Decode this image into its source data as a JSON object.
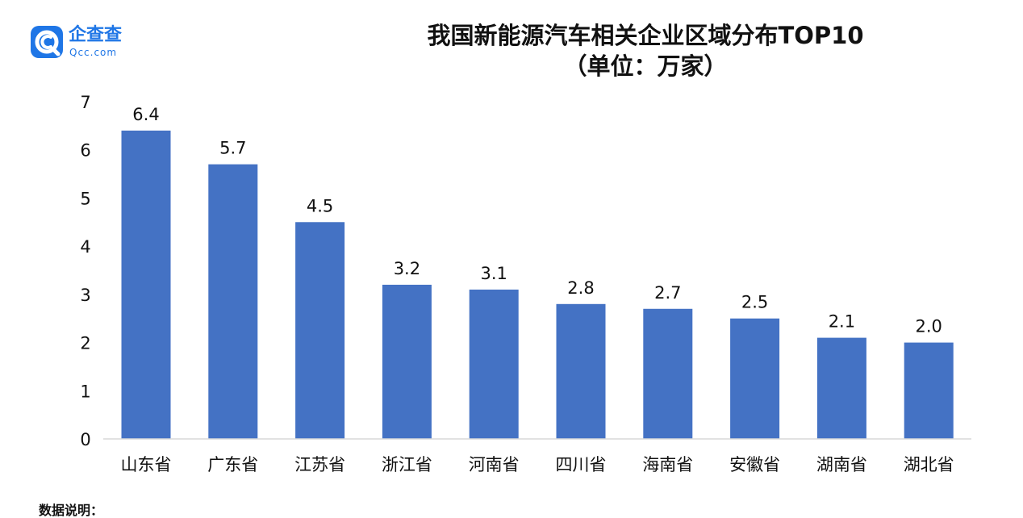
{
  "logo": {
    "name_cn": "企查查",
    "name_en": "Qcc.com",
    "icon": "qcc-logo-icon",
    "color": "#1f76e6"
  },
  "chart_data": {
    "type": "bar",
    "title": "我国新能源汽车相关企业区域分布TOP10",
    "subtitle": "（单位：万家）",
    "categories": [
      "山东省",
      "广东省",
      "江苏省",
      "浙江省",
      "河南省",
      "四川省",
      "海南省",
      "安徽省",
      "湖南省",
      "湖北省"
    ],
    "values": [
      6.4,
      5.7,
      4.5,
      3.2,
      3.1,
      2.8,
      2.7,
      2.5,
      2.1,
      2.0
    ],
    "value_labels": [
      "6.4",
      "5.7",
      "4.5",
      "3.2",
      "3.1",
      "2.8",
      "2.7",
      "2.5",
      "2.1",
      "2.0"
    ],
    "ylim": [
      0,
      7
    ],
    "yticks": [
      0,
      1,
      2,
      3,
      4,
      5,
      6,
      7
    ],
    "xlabel": "",
    "ylabel": "",
    "grid": false,
    "legend": "none",
    "bar_color": "#4472c4"
  },
  "footnote": "数据说明："
}
